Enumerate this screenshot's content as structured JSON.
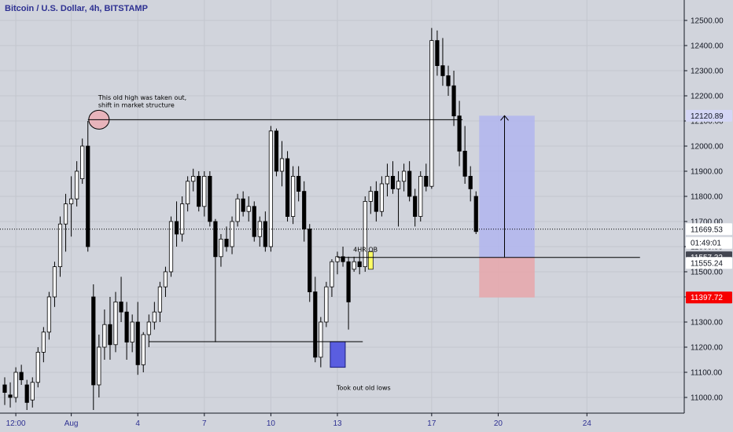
{
  "chart_data": {
    "type": "candlestick",
    "title": "Bitcoin / U.S. Dollar, 4h, BITSTAMP",
    "ylim": [
      10950,
      12550
    ],
    "y_ticks": [
      "11000.00",
      "11100.00",
      "11200.00",
      "11300.00",
      "11400.00",
      "11500.00",
      "11600.00",
      "11700.00",
      "11800.00",
      "11900.00",
      "12000.00",
      "12100.00",
      "12200.00",
      "12300.00",
      "12400.00",
      "12500.00"
    ],
    "x_ticks": [
      {
        "label": "12:00",
        "bar": 2
      },
      {
        "label": "Aug",
        "bar": 12
      },
      {
        "label": "4",
        "bar": 24
      },
      {
        "label": "7",
        "bar": 36
      },
      {
        "label": "10",
        "bar": 48
      },
      {
        "label": "13",
        "bar": 60
      },
      {
        "label": "17",
        "bar": 77
      },
      {
        "label": "20",
        "bar": 89
      },
      {
        "label": "24",
        "bar": 105
      }
    ],
    "candles": [
      [
        11050,
        11080,
        10970,
        11020
      ],
      [
        11010,
        11060,
        10960,
        11000
      ],
      [
        11000,
        11120,
        10980,
        11100
      ],
      [
        11100,
        11130,
        11050,
        11070
      ],
      [
        11050,
        11070,
        10950,
        10980
      ],
      [
        10990,
        11080,
        10960,
        11060
      ],
      [
        11060,
        11200,
        11040,
        11180
      ],
      [
        11180,
        11280,
        11140,
        11260
      ],
      [
        11260,
        11420,
        11230,
        11400
      ],
      [
        11400,
        11540,
        11360,
        11520
      ],
      [
        11520,
        11720,
        11480,
        11690
      ],
      [
        11690,
        11810,
        11580,
        11770
      ],
      [
        11770,
        11880,
        11640,
        11790
      ],
      [
        11790,
        11940,
        11760,
        11900
      ],
      [
        11870,
        12030,
        11850,
        12000
      ],
      [
        12000,
        12100,
        11580,
        11600
      ],
      [
        11400,
        11450,
        10950,
        11050
      ],
      [
        11050,
        11250,
        11000,
        11200
      ],
      [
        11200,
        11350,
        11150,
        11290
      ],
      [
        11290,
        11400,
        11150,
        11210
      ],
      [
        11210,
        11420,
        11180,
        11380
      ],
      [
        11380,
        11480,
        11300,
        11340
      ],
      [
        11340,
        11380,
        11150,
        11220
      ],
      [
        11220,
        11330,
        11180,
        11300
      ],
      [
        11300,
        11380,
        11090,
        11130
      ],
      [
        11130,
        11260,
        11100,
        11250
      ],
      [
        11250,
        11330,
        11200,
        11300
      ],
      [
        11300,
        11380,
        11270,
        11340
      ],
      [
        11340,
        11460,
        11300,
        11440
      ],
      [
        11440,
        11520,
        11400,
        11500
      ],
      [
        11500,
        11720,
        11480,
        11700
      ],
      [
        11700,
        11780,
        11600,
        11650
      ],
      [
        11650,
        11800,
        11620,
        11770
      ],
      [
        11770,
        11880,
        11740,
        11860
      ],
      [
        11860,
        11910,
        11820,
        11880
      ],
      [
        11880,
        11900,
        11740,
        11760
      ],
      [
        11760,
        11900,
        11720,
        11880
      ],
      [
        11880,
        11900,
        11680,
        11700
      ],
      [
        11700,
        11710,
        11220,
        11560
      ],
      [
        11560,
        11650,
        11520,
        11630
      ],
      [
        11630,
        11680,
        11580,
        11600
      ],
      [
        11600,
        11720,
        11570,
        11700
      ],
      [
        11700,
        11810,
        11680,
        11790
      ],
      [
        11790,
        11820,
        11720,
        11740
      ],
      [
        11740,
        11800,
        11700,
        11760
      ],
      [
        11760,
        11780,
        11620,
        11640
      ],
      [
        11640,
        11720,
        11600,
        11700
      ],
      [
        11700,
        11740,
        11580,
        11600
      ],
      [
        11600,
        12080,
        11580,
        12060
      ],
      [
        12060,
        12070,
        11880,
        11900
      ],
      [
        11900,
        12020,
        11840,
        11950
      ],
      [
        11950,
        11980,
        11700,
        11720
      ],
      [
        11720,
        11920,
        11690,
        11880
      ],
      [
        11880,
        11920,
        11780,
        11820
      ],
      [
        11820,
        11860,
        11620,
        11670
      ],
      [
        11670,
        11690,
        11380,
        11420
      ],
      [
        11420,
        11480,
        11140,
        11160
      ],
      [
        11160,
        11320,
        11120,
        11300
      ],
      [
        11300,
        11460,
        11280,
        11440
      ],
      [
        11440,
        11550,
        11400,
        11540
      ],
      [
        11540,
        11580,
        11490,
        11560
      ],
      [
        11560,
        11600,
        11520,
        11540
      ],
      [
        11540,
        11560,
        11270,
        11380
      ],
      [
        11510,
        11560,
        11500,
        11540
      ],
      [
        11540,
        11580,
        11490,
        11520
      ],
      [
        11520,
        11800,
        11500,
        11780
      ],
      [
        11780,
        11840,
        11730,
        11820
      ],
      [
        11820,
        11860,
        11700,
        11740
      ],
      [
        11740,
        11880,
        11720,
        11850
      ],
      [
        11850,
        11930,
        11800,
        11880
      ],
      [
        11880,
        11940,
        11810,
        11830
      ],
      [
        11830,
        11900,
        11680,
        11860
      ],
      [
        11860,
        11930,
        11820,
        11900
      ],
      [
        11900,
        11940,
        11780,
        11800
      ],
      [
        11800,
        11830,
        11680,
        11720
      ],
      [
        11720,
        11900,
        11700,
        11880
      ],
      [
        11880,
        11930,
        11820,
        11840
      ],
      [
        11840,
        12470,
        11830,
        12420
      ],
      [
        12420,
        12460,
        12280,
        12320
      ],
      [
        12320,
        12430,
        12240,
        12280
      ],
      [
        12280,
        12320,
        12200,
        12240
      ],
      [
        12240,
        12300,
        12080,
        12120
      ],
      [
        12120,
        12180,
        11920,
        11980
      ],
      [
        11980,
        12080,
        11850,
        11880
      ],
      [
        11880,
        11920,
        11780,
        11830
      ],
      [
        11800,
        11820,
        11650,
        11660
      ]
    ],
    "lines": [
      {
        "name": "old-high",
        "from_bar": 15,
        "to_bar": 83,
        "price": 12105
      },
      {
        "name": "ob-line",
        "from_bar": 60,
        "to_bar": 115,
        "price": 11557
      },
      {
        "name": "low-line",
        "from_bar": 26,
        "to_bar": 65,
        "price": 11222
      }
    ],
    "current_price": 11669.53,
    "annotations": [
      {
        "text": "This old high was taken out,",
        "bar": 17,
        "price": 12185
      },
      {
        "text": "shift in market structure",
        "bar": 17,
        "price": 12155
      },
      {
        "text": "4HR OB",
        "bar": 63,
        "price": 11580
      },
      {
        "text": "Took out old lows",
        "bar": 60,
        "price": 11030
      }
    ],
    "target_box": {
      "from_bar": 86,
      "to_bar": 96,
      "top": 12120.89,
      "mid": 11557.32,
      "bottom": 11397.72
    },
    "price_labels": [
      {
        "text": "12120.89",
        "price": 12120.89,
        "bg": "#d4d6f5",
        "fg": "#131722"
      },
      {
        "text": "11669.53",
        "price": 11669.53,
        "bg": "#ffffff",
        "fg": "#131722"
      },
      {
        "text": "01:49:01",
        "price": 11615,
        "bg": "#ffffff",
        "fg": "#131722"
      },
      {
        "text": "11557.32",
        "price": 11557.32,
        "bg": "#434651",
        "fg": "#ffffff"
      },
      {
        "text": "11555.24",
        "price": 11535,
        "bg": "#ffffff",
        "fg": "#131722"
      },
      {
        "text": "11397.72",
        "price": 11397.72,
        "bg": "#f70000",
        "fg": "#ffffff"
      }
    ],
    "colors": {
      "background": "#d1d4dc",
      "candle": "#000000",
      "target_fill": "#b2b5ef",
      "stop_fill": "#e5a9ad",
      "ob_highlight": "#ffff66",
      "low_box": "#5a5ee0",
      "high_ellipse": "#e8b4bb",
      "title": "#2e3192"
    }
  }
}
